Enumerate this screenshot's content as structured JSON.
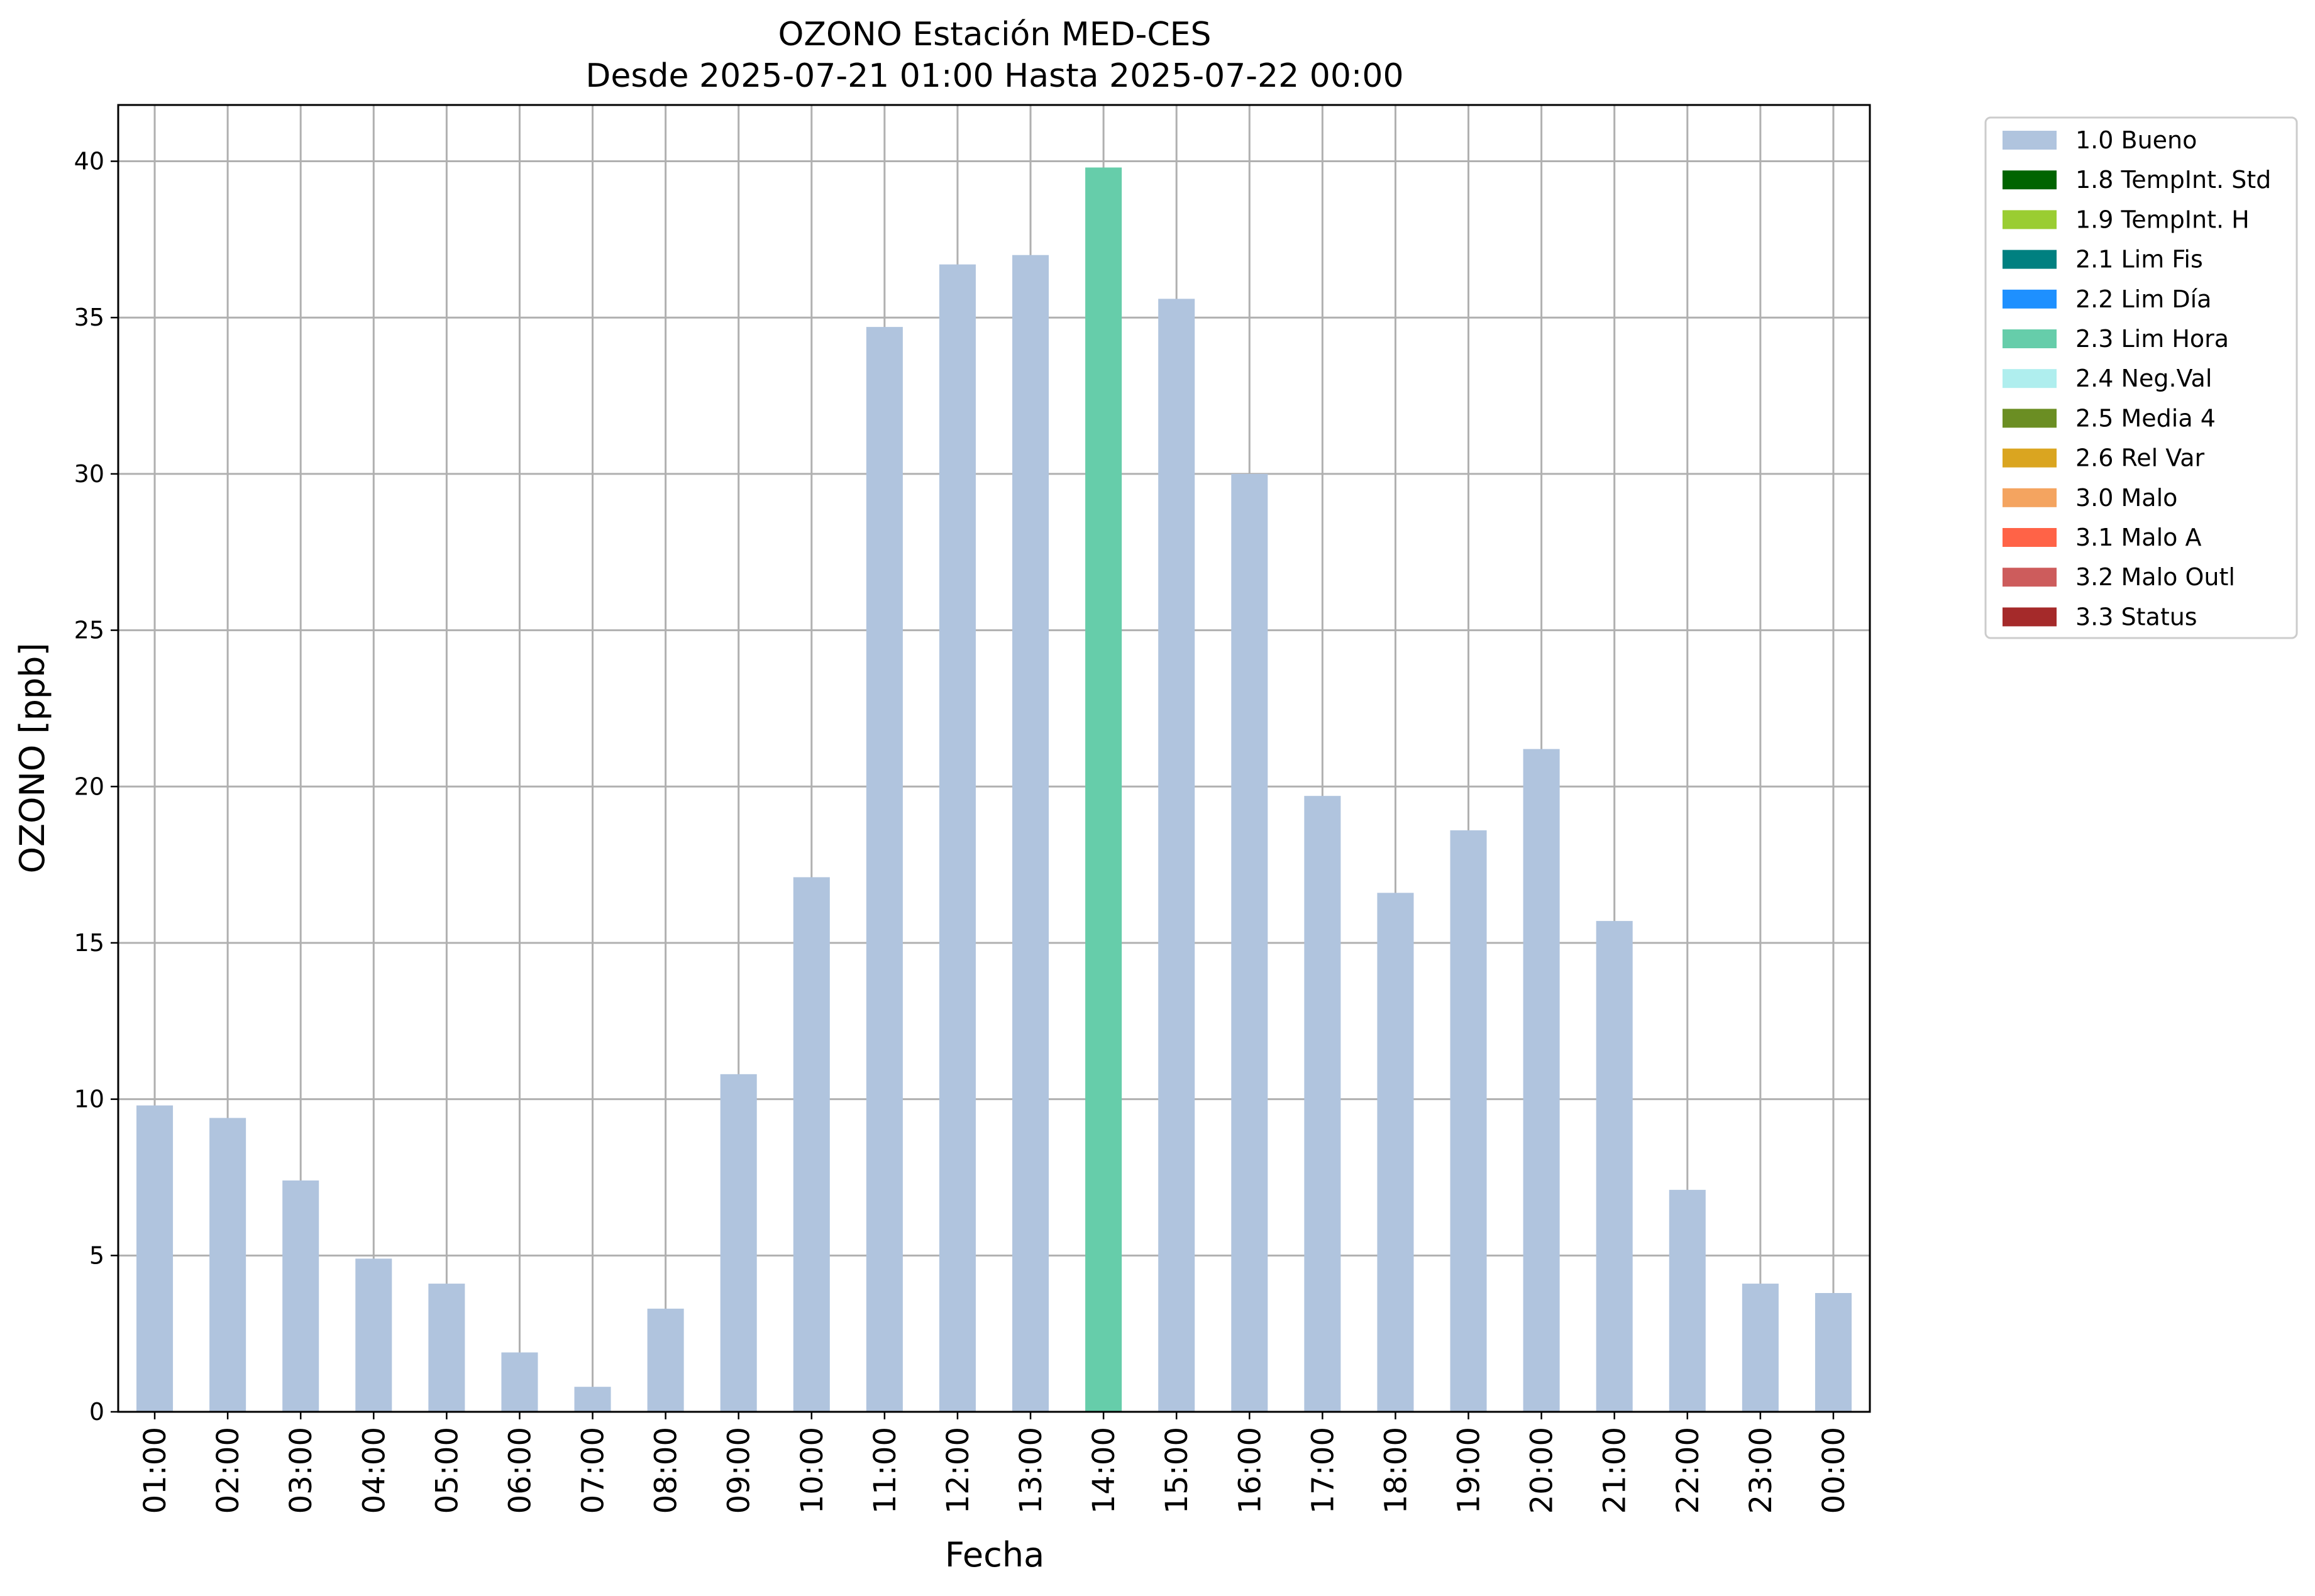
{
  "chart_data": {
    "type": "bar",
    "title": "OZONO Estación MED-CES",
    "subtitle": "Desde 2025-07-21 01:00 Hasta 2025-07-22 00:00",
    "xlabel": "Fecha",
    "ylabel": "OZONO [ppb]",
    "ylim": [
      0,
      41.8
    ],
    "yticks": [
      0,
      5,
      10,
      15,
      20,
      25,
      30,
      35,
      40
    ],
    "grid": true,
    "legend_position": "outside-top-right",
    "categories": [
      "01:00",
      "02:00",
      "03:00",
      "04:00",
      "05:00",
      "06:00",
      "07:00",
      "08:00",
      "09:00",
      "10:00",
      "11:00",
      "12:00",
      "13:00",
      "14:00",
      "15:00",
      "16:00",
      "17:00",
      "18:00",
      "19:00",
      "20:00",
      "21:00",
      "22:00",
      "23:00",
      "00:00"
    ],
    "values": [
      9.8,
      9.4,
      7.4,
      4.9,
      4.1,
      1.9,
      0.8,
      3.3,
      10.8,
      17.1,
      34.7,
      36.7,
      37.0,
      39.8,
      35.6,
      30.0,
      19.7,
      16.6,
      18.6,
      21.2,
      15.7,
      7.1,
      4.1,
      3.8
    ],
    "flags": [
      "1.0 Bueno",
      "1.0 Bueno",
      "1.0 Bueno",
      "1.0 Bueno",
      "1.0 Bueno",
      "1.0 Bueno",
      "1.0 Bueno",
      "1.0 Bueno",
      "1.0 Bueno",
      "1.0 Bueno",
      "1.0 Bueno",
      "1.0 Bueno",
      "1.0 Bueno",
      "2.3 Lim Hora",
      "1.0 Bueno",
      "1.0 Bueno",
      "1.0 Bueno",
      "1.0 Bueno",
      "1.0 Bueno",
      "1.0 Bueno",
      "1.0 Bueno",
      "1.0 Bueno",
      "1.0 Bueno",
      "1.0 Bueno"
    ],
    "legend": [
      {
        "label": "1.0 Bueno",
        "color": "#b0c4de"
      },
      {
        "label": "1.8 TempInt. Std",
        "color": "#006400"
      },
      {
        "label": "1.9 TempInt. H",
        "color": "#9acd32"
      },
      {
        "label": "2.1 Lim Fis",
        "color": "#008080"
      },
      {
        "label": "2.2 Lim Día",
        "color": "#1e90ff"
      },
      {
        "label": "2.3 Lim Hora",
        "color": "#66cdaa"
      },
      {
        "label": "2.4 Neg.Val",
        "color": "#afeeee"
      },
      {
        "label": "2.5 Media 4",
        "color": "#6b8e23"
      },
      {
        "label": "2.6 Rel Var",
        "color": "#daa520"
      },
      {
        "label": "3.0 Malo",
        "color": "#f4a460"
      },
      {
        "label": "3.1 Malo A",
        "color": "#ff6347"
      },
      {
        "label": "3.2 Malo Outl",
        "color": "#cd5c5c"
      },
      {
        "label": "3.3 Status",
        "color": "#a52a2a"
      }
    ]
  }
}
